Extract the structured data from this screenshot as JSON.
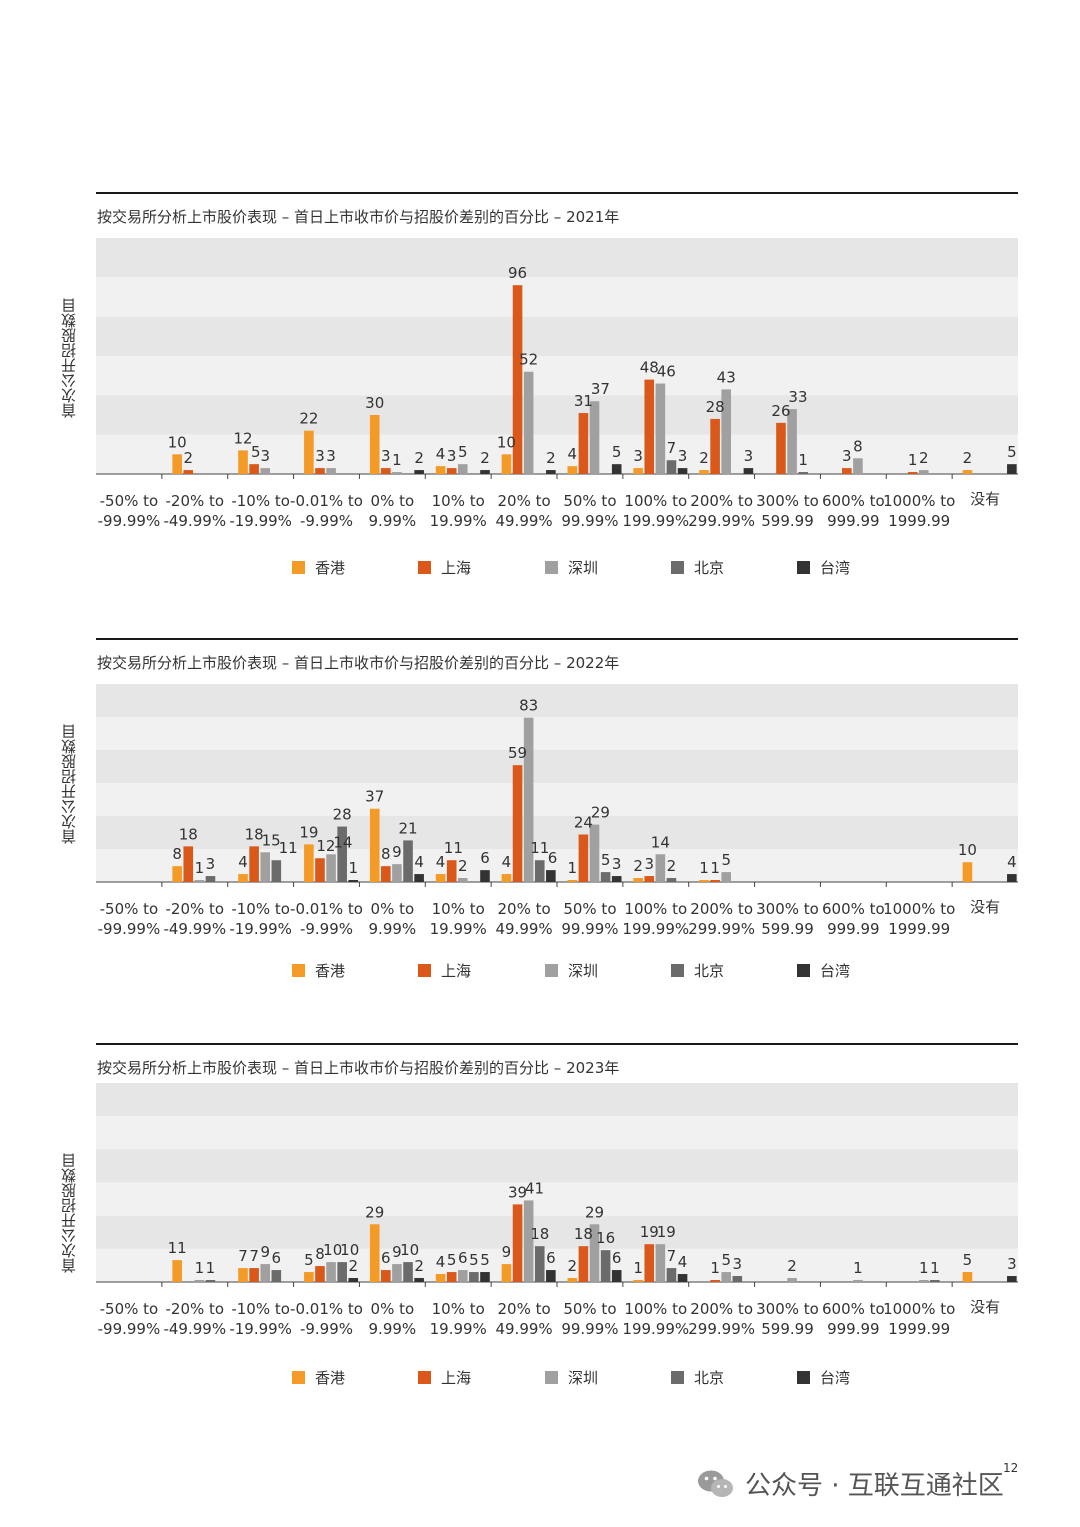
{
  "y_axis_label": "首次公开招股数目",
  "categories": [
    [
      "-50% to",
      "-99.99%"
    ],
    [
      "-20% to",
      "-49.99%"
    ],
    [
      "-10% to",
      "-19.99%"
    ],
    [
      "-0.01% to",
      "-9.99%"
    ],
    [
      "0% to",
      "9.99%"
    ],
    [
      "10% to",
      "19.99%"
    ],
    [
      "20% to",
      "49.99%"
    ],
    [
      "50% to",
      "99.99%"
    ],
    [
      "100% to",
      "199.99%"
    ],
    [
      "200% to",
      "299.99%"
    ],
    [
      "300% to",
      "599.99"
    ],
    [
      "600% to",
      "999.99"
    ],
    [
      "1000% to",
      "1999.99"
    ],
    [
      "没有"
    ]
  ],
  "legend": [
    {
      "name": "香港",
      "color": "#f39a27"
    },
    {
      "name": "上海",
      "color": "#d9581a"
    },
    {
      "name": "深圳",
      "color": "#a0a0a0"
    },
    {
      "name": "北京",
      "color": "#6b6b6b"
    },
    {
      "name": "台湾",
      "color": "#333333"
    }
  ],
  "chart_data": [
    {
      "type": "bar",
      "title": "按交易所分析上市股价表现 – 首日上市收市价与招股价差别的百分比 – 2021年",
      "ylabel": "首次公开招股数目",
      "ylim": [
        0,
        120
      ],
      "grid": "horizontal bands",
      "legend_position": "bottom",
      "series": [
        {
          "name": "香港",
          "values": [
            null,
            10,
            12,
            22,
            30,
            4,
            10,
            4,
            3,
            2,
            null,
            null,
            null,
            2
          ]
        },
        {
          "name": "上海",
          "values": [
            null,
            2,
            5,
            3,
            3,
            3,
            96,
            31,
            48,
            28,
            26,
            3,
            1,
            null
          ]
        },
        {
          "name": "深圳",
          "values": [
            null,
            null,
            3,
            3,
            1,
            5,
            52,
            37,
            46,
            43,
            33,
            8,
            2,
            null
          ]
        },
        {
          "name": "北京",
          "values": [
            null,
            null,
            null,
            null,
            null,
            null,
            null,
            null,
            7,
            null,
            1,
            null,
            null,
            null
          ]
        },
        {
          "name": "台湾",
          "values": [
            null,
            null,
            null,
            null,
            2,
            2,
            2,
            5,
            3,
            3,
            null,
            null,
            null,
            5
          ]
        }
      ]
    },
    {
      "type": "bar",
      "title": "按交易所分析上市股价表现 – 首日上市收市价与招股价差别的百分比 – 2022年",
      "ylabel": "首次公开招股数目",
      "ylim": [
        0,
        100
      ],
      "grid": "horizontal bands",
      "legend_position": "bottom",
      "series": [
        {
          "name": "香港",
          "values": [
            null,
            8,
            4,
            19,
            37,
            4,
            4,
            1,
            2,
            1,
            null,
            null,
            null,
            10
          ]
        },
        {
          "name": "上海",
          "values": [
            null,
            18,
            18,
            12,
            8,
            11,
            59,
            24,
            3,
            1,
            null,
            null,
            null,
            null
          ]
        },
        {
          "name": "深圳",
          "values": [
            null,
            1,
            15,
            14,
            9,
            2,
            83,
            29,
            14,
            5,
            null,
            null,
            null,
            null
          ]
        },
        {
          "name": "北京",
          "values": [
            null,
            3,
            11,
            28,
            21,
            null,
            11,
            5,
            2,
            null,
            null,
            null,
            null,
            null
          ]
        },
        {
          "name": "台湾",
          "values": [
            null,
            null,
            null,
            1,
            4,
            6,
            6,
            3,
            null,
            null,
            null,
            null,
            null,
            4
          ]
        }
      ]
    },
    {
      "type": "bar",
      "title": "按交易所分析上市股价表现 – 首日上市收市价与招股价差别的百分比 – 2023年",
      "ylabel": "首次公开招股数目",
      "ylim": [
        0,
        100
      ],
      "grid": "horizontal bands",
      "legend_position": "bottom",
      "series": [
        {
          "name": "香港",
          "values": [
            null,
            11,
            7,
            5,
            29,
            4,
            9,
            2,
            1,
            null,
            null,
            null,
            null,
            5
          ]
        },
        {
          "name": "上海",
          "values": [
            null,
            null,
            7,
            8,
            6,
            5,
            39,
            18,
            19,
            1,
            null,
            null,
            null,
            null
          ]
        },
        {
          "name": "深圳",
          "values": [
            null,
            1,
            9,
            10,
            9,
            6,
            41,
            29,
            19,
            5,
            2,
            1,
            1,
            null
          ]
        },
        {
          "name": "北京",
          "values": [
            null,
            1,
            6,
            10,
            10,
            5,
            18,
            16,
            7,
            3,
            null,
            null,
            1,
            null
          ]
        },
        {
          "name": "台湾",
          "values": [
            null,
            null,
            null,
            2,
            2,
            5,
            6,
            6,
            4,
            null,
            null,
            null,
            null,
            3
          ]
        }
      ]
    }
  ],
  "footer": {
    "text": "公众号 · 互联互通社区",
    "page_number": "12"
  }
}
